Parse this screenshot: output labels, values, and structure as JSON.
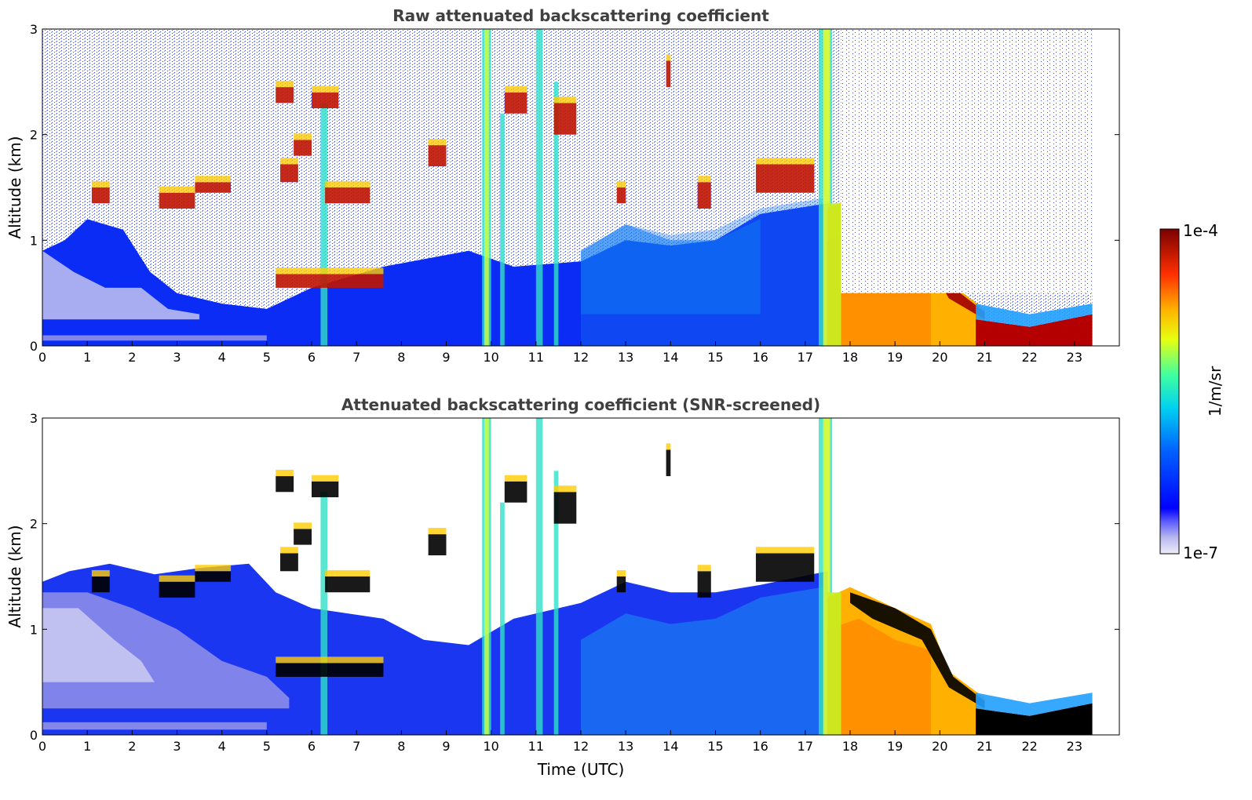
{
  "chart_data": [
    {
      "type": "heatmap",
      "title": "Raw attenuated backscattering coefficient",
      "xlabel": "",
      "ylabel": "Altitude (km)",
      "xlim": [
        0,
        24
      ],
      "ylim": [
        0,
        3
      ],
      "x_ticks": [
        "0",
        "1",
        "2",
        "3",
        "4",
        "5",
        "6",
        "7",
        "8",
        "9",
        "10",
        "11",
        "12",
        "13",
        "14",
        "15",
        "16",
        "17",
        "18",
        "19",
        "20",
        "21",
        "22",
        "23"
      ],
      "y_ticks": [
        "0",
        "1",
        "2",
        "3"
      ],
      "data_end_hour": 23.4,
      "layers": [
        {
          "feature": "boundary layer (strong signal)",
          "x": [
            17.5,
            21.0
          ],
          "y": [
            0.0,
            1.4
          ]
        },
        {
          "feature": "low cloud",
          "x": [
            20.8,
            23.4
          ],
          "y": [
            0.0,
            0.3
          ]
        },
        {
          "feature": "cloud layer",
          "x": [
            5.2,
            7.6
          ],
          "y": [
            0.55,
            0.7
          ]
        },
        {
          "feature": "cloud layer",
          "x": [
            15.9,
            17.2
          ],
          "y": [
            1.45,
            1.75
          ]
        },
        {
          "feature": "cloud layer",
          "x": [
            6.3,
            7.3
          ],
          "y": [
            1.3,
            1.6
          ]
        }
      ]
    },
    {
      "type": "heatmap",
      "title": "Attenuated backscattering coefficient (SNR-screened)",
      "xlabel": "Time (UTC)",
      "ylabel": "Altitude (km)",
      "xlim": [
        0,
        24
      ],
      "ylim": [
        0,
        3
      ],
      "x_ticks": [
        "0",
        "1",
        "2",
        "3",
        "4",
        "5",
        "6",
        "7",
        "8",
        "9",
        "10",
        "11",
        "12",
        "13",
        "14",
        "15",
        "16",
        "17",
        "18",
        "19",
        "20",
        "21",
        "22",
        "23"
      ],
      "y_ticks": [
        "0",
        "1",
        "2",
        "3"
      ],
      "data_end_hour": 23.4,
      "layers": [
        {
          "feature": "boundary layer (strong signal)",
          "x": [
            17.5,
            21.0
          ],
          "y": [
            0.0,
            1.4
          ]
        },
        {
          "feature": "low cloud",
          "x": [
            20.8,
            23.4
          ],
          "y": [
            0.0,
            0.3
          ]
        },
        {
          "feature": "cloud layer",
          "x": [
            5.2,
            7.6
          ],
          "y": [
            0.55,
            0.7
          ]
        },
        {
          "feature": "cloud layer",
          "x": [
            15.9,
            17.2
          ],
          "y": [
            1.45,
            1.75
          ]
        }
      ]
    }
  ],
  "colorbar": {
    "label": "1/m/sr",
    "max_label": "1e-4",
    "min_label": "1e-7",
    "scale": "log",
    "colormap": [
      "#e6e6f7",
      "#b4b4ef",
      "#0000ff",
      "#0080ff",
      "#00e0f0",
      "#60ff90",
      "#ffff00",
      "#ff8000",
      "#e00000",
      "#800000"
    ]
  }
}
